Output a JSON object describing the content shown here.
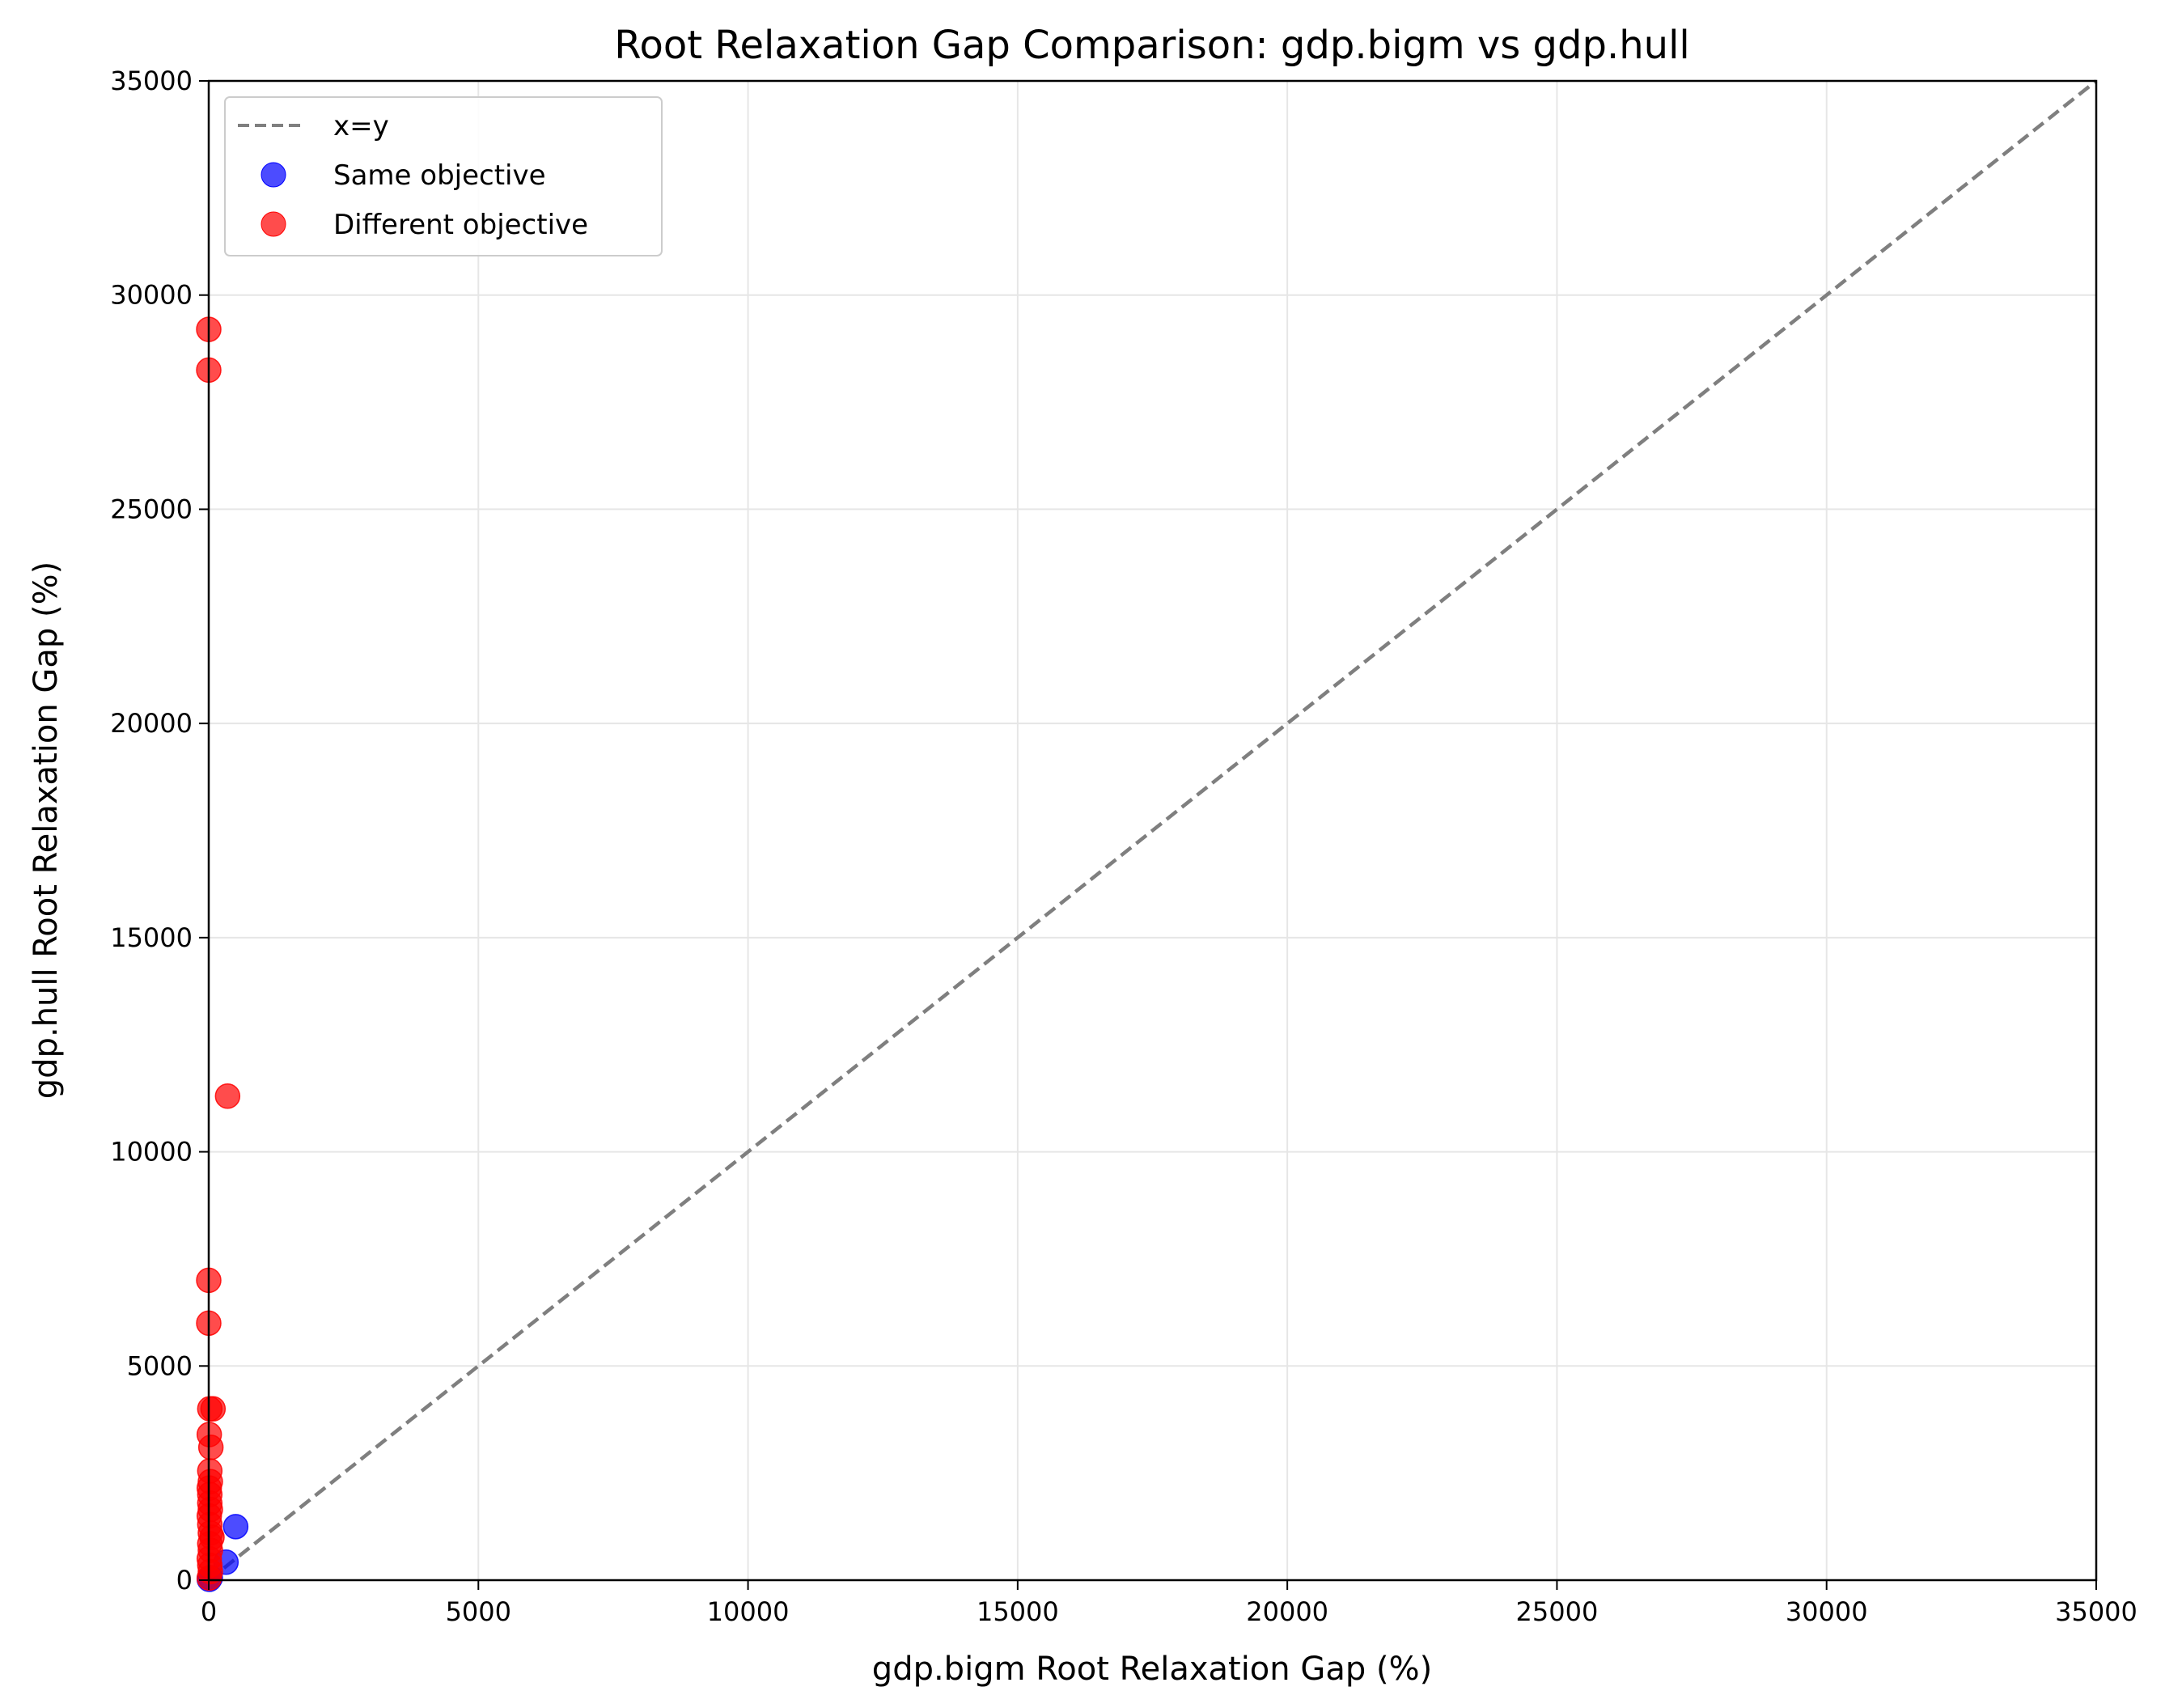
{
  "chart_data": {
    "type": "scatter",
    "title": "Root Relaxation Gap Comparison: gdp.bigm vs gdp.hull",
    "xlabel": "gdp.bigm Root Relaxation Gap (%)",
    "ylabel": "gdp.hull Root Relaxation Gap (%)",
    "xlim": [
      0,
      35000
    ],
    "ylim": [
      0,
      35000
    ],
    "x_ticks": [
      "0",
      "5000",
      "10000",
      "15000",
      "20000",
      "25000",
      "30000",
      "35000"
    ],
    "y_ticks": [
      "0",
      "5000",
      "10000",
      "15000",
      "20000",
      "25000",
      "30000",
      "35000"
    ],
    "grid": true,
    "legend_position": "top-left",
    "reference_line": {
      "name": "x=y",
      "color": "#7f7f7f",
      "style": "dashed"
    },
    "series": [
      {
        "name": "Same objective",
        "color": "#0000ff",
        "points": [
          {
            "x": 500,
            "y": 1250
          },
          {
            "x": 320,
            "y": 420
          },
          {
            "x": 30,
            "y": 60
          },
          {
            "x": 10,
            "y": 20
          }
        ]
      },
      {
        "name": "Different objective",
        "color": "#ff0000",
        "points": [
          {
            "x": 0,
            "y": 29200
          },
          {
            "x": 0,
            "y": 28250
          },
          {
            "x": 350,
            "y": 11300
          },
          {
            "x": 0,
            "y": 7000
          },
          {
            "x": 0,
            "y": 6000
          },
          {
            "x": 80,
            "y": 4000
          },
          {
            "x": 20,
            "y": 4000
          },
          {
            "x": 10,
            "y": 3400
          },
          {
            "x": 40,
            "y": 3100
          },
          {
            "x": 20,
            "y": 2550
          },
          {
            "x": 30,
            "y": 2300
          },
          {
            "x": 10,
            "y": 2150
          },
          {
            "x": 20,
            "y": 2000
          },
          {
            "x": 20,
            "y": 1800
          },
          {
            "x": 30,
            "y": 1650
          },
          {
            "x": 10,
            "y": 1500
          },
          {
            "x": 20,
            "y": 1300
          },
          {
            "x": 30,
            "y": 1100
          },
          {
            "x": 60,
            "y": 1000
          },
          {
            "x": 20,
            "y": 850
          },
          {
            "x": 30,
            "y": 700
          },
          {
            "x": 10,
            "y": 500
          },
          {
            "x": 20,
            "y": 350
          },
          {
            "x": 30,
            "y": 200
          },
          {
            "x": 10,
            "y": 50
          }
        ]
      }
    ]
  }
}
